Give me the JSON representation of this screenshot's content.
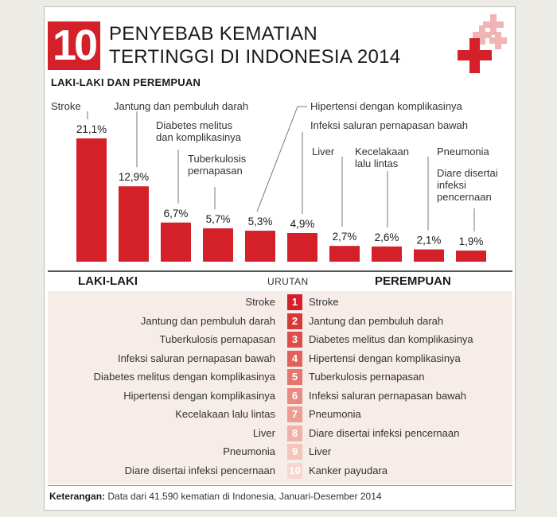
{
  "header": {
    "number": "10",
    "title_line1": "PENYEBAB KEMATIAN",
    "title_line2": "TERTINGGI DI INDONESIA 2014",
    "subtitle": "LAKI-LAKI DAN PEREMPUAN"
  },
  "chart_data": {
    "type": "bar",
    "title": "10 PENYEBAB KEMATIAN TERTINGGI DI INDONESIA 2014",
    "subtitle": "LAKI-LAKI DAN PEREMPUAN",
    "categories": [
      "Stroke",
      "Jantung dan pembuluh darah",
      "Diabetes melitus dan komplikasinya",
      "Tuberkulosis pernapasan",
      "Hipertensi dengan komplikasinya",
      "Infeksi saluran pernapasan bawah",
      "Liver",
      "Kecelakaan lalu lintas",
      "Pneumonia",
      "Diare disertai infeksi pencernaan"
    ],
    "label_lines": [
      [
        "Stroke"
      ],
      [
        "Jantung dan pembuluh darah"
      ],
      [
        "Diabetes melitus",
        "dan komplikasinya"
      ],
      [
        "Tuberkulosis",
        "pernapasan"
      ],
      [
        "Hipertensi dengan komplikasinya"
      ],
      [
        "Infeksi saluran pernapasan bawah"
      ],
      [
        "Liver"
      ],
      [
        "Kecelakaan",
        "lalu lintas"
      ],
      [
        "Pneumonia"
      ],
      [
        "Diare disertai",
        "infeksi",
        "pencernaan"
      ]
    ],
    "values": [
      21.1,
      12.9,
      6.7,
      5.7,
      5.3,
      4.9,
      2.7,
      2.6,
      2.1,
      1.9
    ],
    "value_labels": [
      "21,1%",
      "12,9%",
      "6,7%",
      "5,7%",
      "5,3%",
      "4,9%",
      "2,7%",
      "2,6%",
      "2,1%",
      "1,9%"
    ],
    "unit": "%",
    "ylim": [
      0,
      21.1
    ],
    "grid": false,
    "bar_color": "#d42029"
  },
  "ranking": {
    "header_male": "LAKI-LAKI",
    "header_rank": "URUTAN",
    "header_female": "PEREMPUAN",
    "rows": [
      {
        "rank": "1",
        "male": "Stroke",
        "female": "Stroke"
      },
      {
        "rank": "2",
        "male": "Jantung dan pembuluh darah",
        "female": "Jantung dan pembuluh darah"
      },
      {
        "rank": "3",
        "male": "Tuberkulosis pernapasan",
        "female": "Diabetes melitus dan komplikasinya"
      },
      {
        "rank": "4",
        "male": "Infeksi saluran pernapasan bawah",
        "female": "Hipertensi dengan komplikasinya"
      },
      {
        "rank": "5",
        "male": "Diabetes melitus dengan komplikasinya",
        "female": "Tuberkulosis pernapasan"
      },
      {
        "rank": "6",
        "male": "Hipertensi dengan komplikasinya",
        "female": "Infeksi saluran pernapasan bawah"
      },
      {
        "rank": "7",
        "male": "Kecelakaan lalu lintas",
        "female": "Pneumonia"
      },
      {
        "rank": "8",
        "male": "Liver",
        "female": "Diare disertai infeksi pencernaan"
      },
      {
        "rank": "9",
        "male": "Pneumonia",
        "female": "Liver"
      },
      {
        "rank": "10",
        "male": "Diare disertai infeksi pencernaan",
        "female": "Kanker payudara"
      }
    ],
    "rank_colors": [
      "#d42029",
      "#d83a38",
      "#dc4e4a",
      "#e0625c",
      "#e4766e",
      "#e88a81",
      "#ec9e94",
      "#f0b2a8",
      "#f3c5bc",
      "#f6d8d0"
    ]
  },
  "footer": {
    "label": "Keterangan:",
    "text": " Data dari 41.590 kematian di Indonesia, Januari-Desember 2014"
  },
  "logo": {
    "icon": "red-cross-icon",
    "color": "#d42029",
    "light_color": "#f1b4b4"
  }
}
